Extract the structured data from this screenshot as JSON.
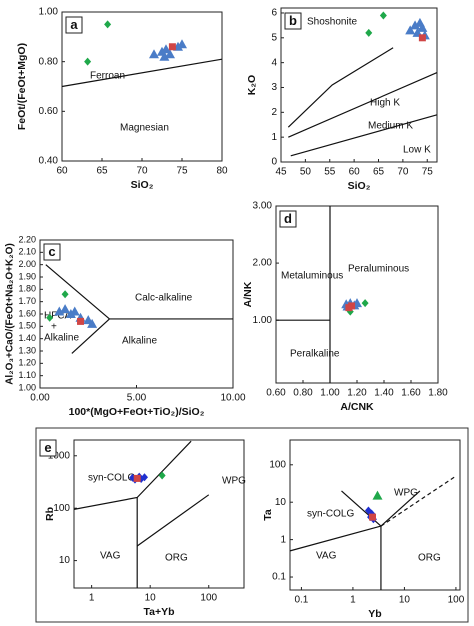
{
  "chart_data": [
    {
      "type": "scatter",
      "label": "a",
      "x_label": "SiO₂",
      "y_label": "FeOt/(FeOt+MgO)",
      "xlim": [
        60,
        80
      ],
      "xticks": [
        60,
        65,
        70,
        75,
        80
      ],
      "ylim": [
        0.4,
        1.0
      ],
      "yticks": [
        {
          "value": 0.4,
          "label": "0.40"
        },
        {
          "value": 0.6,
          "label": "0.60"
        },
        {
          "value": 0.8,
          "label": "0.80"
        },
        {
          "value": 1.0,
          "label": "1.00"
        }
      ],
      "boundaries": [
        {
          "x": [
            60,
            80
          ],
          "y": [
            0.7,
            0.81
          ]
        }
      ],
      "annotations": [
        "Ferroan",
        "Magnesian"
      ],
      "series": [
        {
          "marker": "diamond",
          "color": "#1fa84a",
          "x": [
            65.7,
            63.2
          ],
          "values": [
            0.95,
            0.8
          ]
        },
        {
          "marker": "triangle",
          "color": "#4a7cc7",
          "x": [
            71.5,
            72.5,
            73,
            73.5,
            74.5,
            75,
            72.8
          ],
          "values": [
            0.83,
            0.84,
            0.85,
            0.83,
            0.86,
            0.87,
            0.82
          ]
        },
        {
          "marker": "square",
          "color": "#d04545",
          "x": [
            73.8
          ],
          "values": [
            0.86
          ]
        }
      ]
    },
    {
      "type": "scatter",
      "label": "b",
      "x_label": "SiO₂",
      "y_label": "K₂O",
      "xlim": [
        45,
        77
      ],
      "xticks": [
        45,
        50,
        55,
        60,
        65,
        70,
        75
      ],
      "ylim": [
        0,
        6.2
      ],
      "yticks": [
        0,
        1,
        2,
        3,
        4,
        5,
        6
      ],
      "boundaries": [
        {
          "x": [
            46.5,
            55.5,
            68
          ],
          "y": [
            1.4,
            3.1,
            4.6
          ]
        },
        {
          "x": [
            46.5,
            77
          ],
          "y": [
            1.0,
            3.6
          ]
        },
        {
          "x": [
            47,
            77
          ],
          "y": [
            0.25,
            1.9
          ]
        }
      ],
      "annotations": [
        "Shoshonite",
        "High K",
        "Medium K",
        "Low K"
      ],
      "series": [
        {
          "marker": "diamond",
          "color": "#1fa84a",
          "x": [
            66,
            63
          ],
          "values": [
            5.9,
            5.2
          ]
        },
        {
          "marker": "triangle",
          "color": "#4a7cc7",
          "x": [
            71.5,
            72.5,
            73,
            73.5,
            74,
            74.5
          ],
          "values": [
            5.3,
            5.5,
            5.2,
            5.6,
            5.4,
            5.1
          ]
        },
        {
          "marker": "square",
          "color": "#d04545",
          "x": [
            74
          ],
          "values": [
            5.0
          ]
        }
      ]
    },
    {
      "type": "scatter",
      "label": "c",
      "x_label": "100*(MgO+FeOt+TiO₂)/SiO₂",
      "y_label": "Al₂O₃+CaO/(FeOt+Na₂O+K₂O)",
      "xlim": [
        0,
        10
      ],
      "xticks": [
        {
          "value": 0,
          "label": "0.00"
        },
        {
          "value": 5,
          "label": "5.00"
        },
        {
          "value": 10,
          "label": "10.00"
        }
      ],
      "ylim": [
        1,
        2.2
      ],
      "yticks": [
        {
          "value": 1.0,
          "label": "1.00"
        },
        {
          "value": 1.1,
          "label": "1.10"
        },
        {
          "value": 1.2,
          "label": "1.20"
        },
        {
          "value": 1.3,
          "label": "1.30"
        },
        {
          "value": 1.4,
          "label": "1.40"
        },
        {
          "value": 1.5,
          "label": "1.50"
        },
        {
          "value": 1.6,
          "label": "1.60"
        },
        {
          "value": 1.7,
          "label": "1.70"
        },
        {
          "value": 1.8,
          "label": "1.80"
        },
        {
          "value": 1.9,
          "label": "1.90"
        },
        {
          "value": 2.0,
          "label": "2.00"
        },
        {
          "value": 2.1,
          "label": "2.10"
        },
        {
          "value": 2.2,
          "label": "2.20"
        }
      ],
      "boundaries": [
        {
          "x": [
            0.3,
            3.6,
            10
          ],
          "y": [
            2.0,
            1.56,
            1.56
          ]
        },
        {
          "x": [
            1.65,
            3.6
          ],
          "y": [
            1.28,
            1.56
          ]
        }
      ],
      "annotations": [
        "Calc-alkaline",
        "Alkaline",
        "HFCA",
        "+",
        "Alkaline"
      ],
      "series": [
        {
          "marker": "diamond",
          "color": "#1fa84a",
          "x": [
            0.5,
            1.3
          ],
          "values": [
            1.57,
            1.76
          ]
        },
        {
          "marker": "triangle",
          "color": "#4a7cc7",
          "x": [
            1.0,
            1.3,
            1.6,
            1.8,
            2.1,
            2.5,
            2.7
          ],
          "values": [
            1.62,
            1.64,
            1.6,
            1.62,
            1.57,
            1.55,
            1.52
          ]
        },
        {
          "marker": "square",
          "color": "#d04545",
          "x": [
            2.1
          ],
          "values": [
            1.54
          ]
        }
      ]
    },
    {
      "type": "scatter",
      "label": "d",
      "x_label": "A/CNK",
      "y_label": "A/NK",
      "xlim": [
        0.6,
        1.8
      ],
      "xticks": [
        {
          "value": 0.6,
          "label": "0.60"
        },
        {
          "value": 0.8,
          "label": "0.80"
        },
        {
          "value": 1.0,
          "label": "1.00"
        },
        {
          "value": 1.2,
          "label": "1.20"
        },
        {
          "value": 1.4,
          "label": "1.40"
        },
        {
          "value": 1.6,
          "label": "1.60"
        },
        {
          "value": 1.8,
          "label": "1.80"
        }
      ],
      "ylim": [
        -0.1,
        3.0
      ],
      "yticks": [
        {
          "value": 1,
          "label": "1.00"
        },
        {
          "value": 2,
          "label": "2.00"
        },
        {
          "value": 3,
          "label": "3.00"
        }
      ],
      "boundaries": [
        {
          "x": [
            1,
            1
          ],
          "y": [
            -0.1,
            3.0
          ]
        },
        {
          "x": [
            0.6,
            1.0
          ],
          "y": [
            1,
            1
          ]
        }
      ],
      "annotations": [
        "Metaluminous",
        "Peraluminous",
        "Peralkaline"
      ],
      "series": [
        {
          "marker": "diamond",
          "color": "#1fa84a",
          "x": [
            1.15,
            1.26
          ],
          "values": [
            1.15,
            1.3
          ]
        },
        {
          "marker": "triangle",
          "color": "#4a7cc7",
          "x": [
            1.12,
            1.15,
            1.18,
            1.2,
            1.13
          ],
          "values": [
            1.28,
            1.3,
            1.26,
            1.3,
            1.24
          ]
        },
        {
          "marker": "square",
          "color": "#d04545",
          "x": [
            1.16,
            1.14
          ],
          "values": [
            1.25,
            1.22
          ]
        }
      ]
    },
    {
      "type": "scatter",
      "label": "e",
      "x_label": "Ta+Yb",
      "y_label": "Rb",
      "xlog": true,
      "ylog": true,
      "xlim": [
        0.5,
        400
      ],
      "xticks": [
        1,
        10,
        100
      ],
      "ylim": [
        3,
        2000
      ],
      "yticks": [
        10,
        100,
        1000
      ],
      "boundaries": [
        {
          "x": [
            0.5,
            6,
            50
          ],
          "y": [
            95,
            160,
            1900
          ]
        },
        {
          "x": [
            6,
            6
          ],
          "y": [
            160,
            3
          ]
        },
        {
          "x": [
            6,
            100
          ],
          "y": [
            19,
            180
          ]
        }
      ],
      "annotations": [
        "syn-COLG",
        "WPG",
        "VAG",
        "ORG"
      ],
      "series": [
        {
          "marker": "diamond",
          "color": "#2030d0",
          "x": [
            5,
            5.5,
            6.5,
            7,
            8
          ],
          "values": [
            380,
            350,
            400,
            360,
            390
          ]
        },
        {
          "marker": "square",
          "color": "#d04545",
          "x": [
            6
          ],
          "values": [
            370
          ]
        },
        {
          "marker": "diamond",
          "color": "#1fa84a",
          "x": [
            16
          ],
          "values": [
            420
          ]
        }
      ]
    },
    {
      "type": "scatter",
      "x_label": "Yb",
      "y_label": "Ta",
      "xlog": true,
      "ylog": true,
      "xlim": [
        0.06,
        120
      ],
      "xticks": [
        0.1,
        1,
        10,
        100
      ],
      "ylim": [
        0.045,
        460
      ],
      "yticks": [
        0.1,
        1,
        10,
        100
      ],
      "boundaries": [
        {
          "x": [
            0.6,
            3.5
          ],
          "y": [
            20,
            2.3
          ]
        },
        {
          "x": [
            0.06,
            3.5
          ],
          "y": [
            0.5,
            2.3
          ]
        },
        {
          "x": [
            3.5,
            100
          ],
          "y": [
            2.3,
            50
          ],
          "dash": true
        },
        {
          "x": [
            3.5,
            20
          ],
          "y": [
            2.3,
            20
          ]
        },
        {
          "x": [
            3.5,
            3.5
          ],
          "y": [
            2.3,
            0.045
          ]
        }
      ],
      "annotations": [
        "WPG",
        "syn-COLG",
        "VAG",
        "ORG"
      ],
      "series": [
        {
          "marker": "triangle",
          "color": "#1fa84a",
          "x": [
            3
          ],
          "values": [
            15
          ]
        },
        {
          "marker": "diamond",
          "color": "#2030d0",
          "x": [
            2,
            2.2,
            2.5,
            2.3
          ],
          "values": [
            6,
            4,
            3.5,
            5
          ]
        },
        {
          "marker": "square",
          "color": "#d04545",
          "x": [
            2.4
          ],
          "values": [
            4
          ]
        }
      ]
    }
  ]
}
